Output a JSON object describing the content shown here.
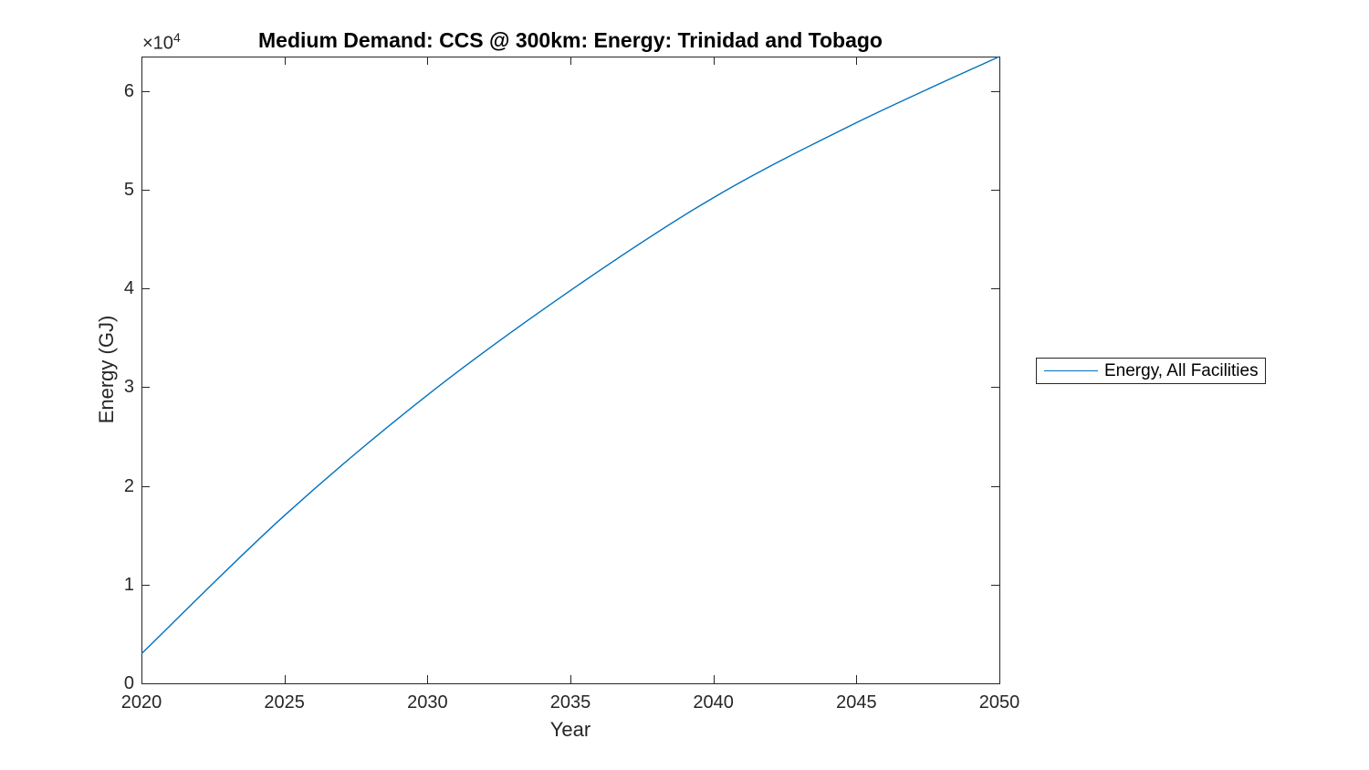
{
  "figure": {
    "title": "Medium Demand: CCS @ 300km: Energy: Trinidad and Tobago",
    "xlabel": "Year",
    "ylabel": "Energy (GJ)",
    "y_multiplier_base": "×10",
    "y_multiplier_exp": "4",
    "background_color": "#ffffff",
    "axis_color": "#262626",
    "line_color": "#0072BD"
  },
  "legend": {
    "label": "Energy, All Facilities"
  },
  "chart_data": {
    "type": "line",
    "title": "Medium Demand: CCS @ 300km: Energy: Trinidad and Tobago",
    "xlabel": "Year",
    "ylabel": "Energy (GJ)",
    "y_unit_multiplier": "×10^4",
    "x": [
      2020,
      2025,
      2030,
      2035,
      2040,
      2045,
      2050
    ],
    "series": [
      {
        "name": "Energy, All Facilities",
        "color": "#0072BD",
        "values": [
          3000,
          17000,
          29200,
          39800,
          49200,
          56800,
          63500
        ]
      }
    ],
    "xlim": [
      2020,
      2050
    ],
    "ylim": [
      0,
      63500
    ],
    "xticks": [
      2020,
      2025,
      2030,
      2035,
      2040,
      2045,
      2050
    ],
    "xtick_labels": [
      "2020",
      "2025",
      "2030",
      "2035",
      "2040",
      "2045",
      "2050"
    ],
    "yticks": [
      0,
      10000,
      20000,
      30000,
      40000,
      50000,
      60000
    ],
    "ytick_labels": [
      "0",
      "1",
      "2",
      "3",
      "4",
      "5",
      "6"
    ],
    "grid": false,
    "box": true,
    "tick_direction": "in",
    "legend_entries": [
      "Energy, All Facilities"
    ],
    "legend_position": "right-outside"
  }
}
